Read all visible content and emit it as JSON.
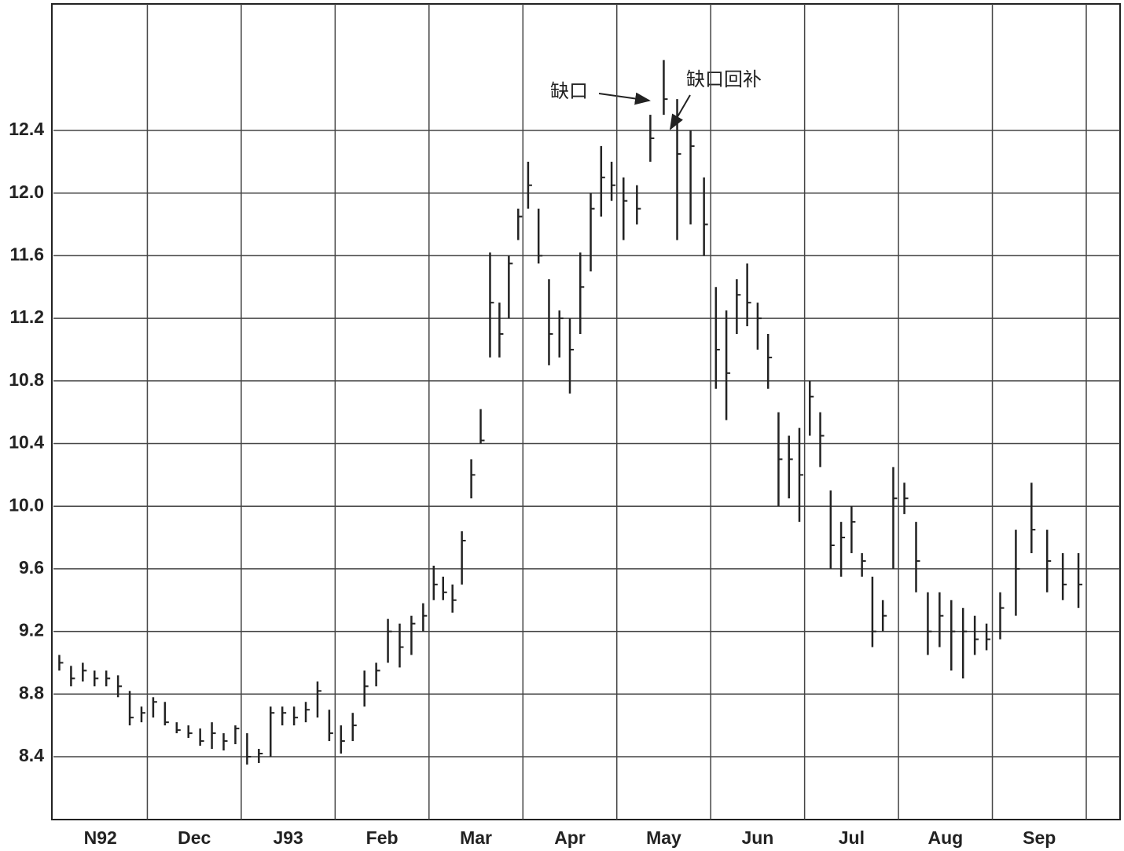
{
  "chart_data": {
    "type": "ohlc",
    "x_labels": [
      "N92",
      "Dec",
      "J93",
      "Feb",
      "Mar",
      "Apr",
      "May",
      "Jun",
      "Jul",
      "Aug",
      "Sep"
    ],
    "bars_per_label": [
      8,
      8,
      8,
      8,
      10,
      9,
      7,
      9,
      9,
      8,
      6
    ],
    "high": [
      9.05,
      8.98,
      9.0,
      8.95,
      8.95,
      8.92,
      8.82,
      8.72,
      8.78,
      8.75,
      8.62,
      8.6,
      8.58,
      8.62,
      8.55,
      8.6,
      8.55,
      8.45,
      8.72,
      8.72,
      8.72,
      8.75,
      8.88,
      8.7,
      8.6,
      8.68,
      8.95,
      9.0,
      9.28,
      9.25,
      9.3,
      9.38,
      9.62,
      9.55,
      9.5,
      9.84,
      10.3,
      10.62,
      11.62,
      11.3,
      11.6,
      11.9,
      12.2,
      11.9,
      11.45,
      11.25,
      11.2,
      11.62,
      12.0,
      12.3,
      12.2,
      12.1,
      12.05,
      12.5,
      12.85,
      12.6,
      12.4,
      12.1,
      11.4,
      11.25,
      11.45,
      11.55,
      11.3,
      11.1,
      10.6,
      10.45,
      10.5,
      10.8,
      10.6,
      10.1,
      9.9,
      10.0,
      9.7,
      9.55,
      9.4,
      10.25,
      10.15,
      9.9,
      9.45,
      9.45,
      9.4,
      9.35,
      9.3,
      9.25,
      9.45,
      9.85,
      10.15,
      9.85,
      9.7,
      9.7
    ],
    "low": [
      8.95,
      8.85,
      8.88,
      8.85,
      8.85,
      8.78,
      8.6,
      8.62,
      8.65,
      8.6,
      8.55,
      8.52,
      8.47,
      8.45,
      8.44,
      8.48,
      8.35,
      8.36,
      8.4,
      8.6,
      8.6,
      8.62,
      8.65,
      8.5,
      8.42,
      8.5,
      8.72,
      8.85,
      9.0,
      8.97,
      9.05,
      9.2,
      9.4,
      9.4,
      9.32,
      9.5,
      10.05,
      10.4,
      10.95,
      10.95,
      11.2,
      11.7,
      11.9,
      11.55,
      10.9,
      10.95,
      10.72,
      11.1,
      11.5,
      11.85,
      11.95,
      11.7,
      11.8,
      12.2,
      12.5,
      11.7,
      11.8,
      11.6,
      10.75,
      10.55,
      11.1,
      11.15,
      11.0,
      10.75,
      10.0,
      10.05,
      9.9,
      10.45,
      10.25,
      9.6,
      9.55,
      9.7,
      9.55,
      9.1,
      9.2,
      9.6,
      9.95,
      9.45,
      9.05,
      9.1,
      8.95,
      8.9,
      9.05,
      9.08,
      9.15,
      9.3,
      9.7,
      9.45,
      9.4,
      9.35
    ],
    "close": [
      9.0,
      8.9,
      8.95,
      8.9,
      8.9,
      8.85,
      8.65,
      8.68,
      8.75,
      8.62,
      8.57,
      8.55,
      8.5,
      8.55,
      8.5,
      8.58,
      8.4,
      8.42,
      8.68,
      8.68,
      8.65,
      8.7,
      8.82,
      8.55,
      8.5,
      8.6,
      8.85,
      8.95,
      9.2,
      9.1,
      9.25,
      9.3,
      9.5,
      9.45,
      9.4,
      9.78,
      10.2,
      10.42,
      11.3,
      11.1,
      11.55,
      11.85,
      12.05,
      11.6,
      11.1,
      11.2,
      11.0,
      11.4,
      11.9,
      12.1,
      12.05,
      11.95,
      11.9,
      12.35,
      12.6,
      12.25,
      12.3,
      11.8,
      11.0,
      10.85,
      11.35,
      11.3,
      11.2,
      10.95,
      10.3,
      10.3,
      10.2,
      10.7,
      10.45,
      9.75,
      9.8,
      9.9,
      9.65,
      9.2,
      9.3,
      10.05,
      10.05,
      9.65,
      9.2,
      9.3,
      9.2,
      9.2,
      9.15,
      9.15,
      9.35,
      9.6,
      9.85,
      9.65,
      9.5,
      9.5
    ],
    "ylim": [
      8.0,
      13.2
    ],
    "yticks": [
      8.4,
      8.8,
      9.2,
      9.6,
      {
        "value": 10,
        "label": "10.0"
      },
      10.4,
      10.8,
      11.2,
      11.6,
      {
        "value": 12,
        "label": "12.0"
      },
      12.4
    ],
    "grid": true,
    "color": "#222",
    "annotations": [
      "缺口",
      "缺口回补"
    ]
  }
}
